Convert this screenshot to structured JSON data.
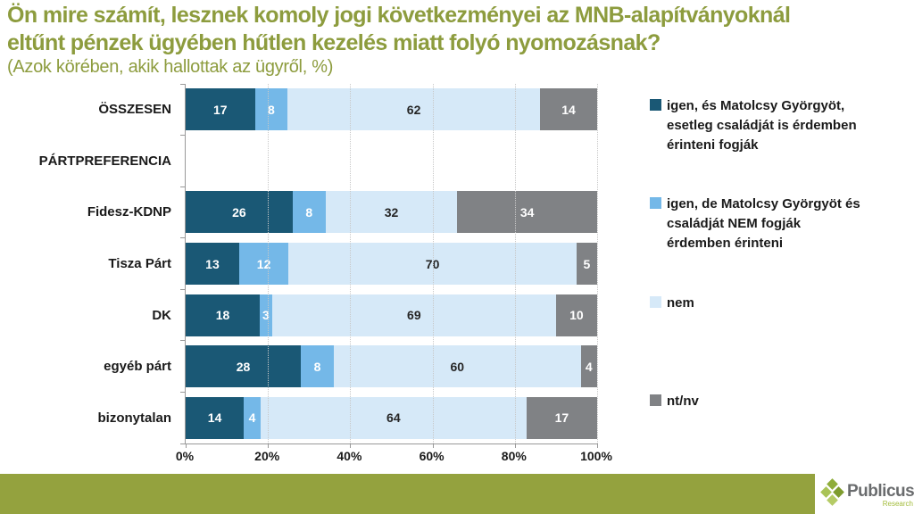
{
  "page": {
    "title_line1": "Ön mire számít, lesznek komoly jogi következményei az MNB-alapítványoknál",
    "title_line2": "eltűnt pénzek ügyében hűtlen kezelés miatt folyó nyomozásnak?",
    "subtitle": "(Azok körében, akik hallottak az ügyről, %)"
  },
  "colors": {
    "title_green": "#8d9c3e",
    "footer_green": "#94a23e",
    "axis_gray": "#999999"
  },
  "chart_data": {
    "type": "bar",
    "stacked": true,
    "orientation": "horizontal",
    "title": "Ön mire számít, lesznek komoly jogi következményei az MNB-alapítványoknál eltűnt pénzek ügyében hűtlen kezelés miatt folyó nyomozásnak?",
    "subtitle": "(Azok körében, akik hallottak az ügyről, %)",
    "categories": [
      "ÖSSZESEN",
      "PÁRTPREFERENCIA",
      "Fidesz-KDNP",
      "Tisza Párt",
      "DK",
      "egyéb párt",
      "bizonytalan"
    ],
    "series": [
      {
        "name": "igen, és Matolcsy Györgyöt, esetleg családját is érdemben érinteni fogják",
        "color": "#1a5875",
        "label_color": "#ffffff",
        "values": [
          17,
          null,
          26,
          13,
          18,
          28,
          14
        ]
      },
      {
        "name": "igen, de Matolcsy Györgyöt és családját NEM fogják érdemben érinteni",
        "color": "#74b8e8",
        "label_color": "#ffffff",
        "values": [
          8,
          null,
          8,
          12,
          3,
          8,
          4
        ]
      },
      {
        "name": "nem",
        "color": "#d6e9f8",
        "label_color": "#262626",
        "values": [
          62,
          null,
          32,
          70,
          69,
          60,
          64
        ]
      },
      {
        "name": "nt/nv",
        "color": "#808285",
        "label_color": "#ffffff",
        "values": [
          14,
          null,
          34,
          5,
          10,
          4,
          17
        ]
      }
    ],
    "x_ticks": [
      {
        "label": "0%",
        "value": 0
      },
      {
        "label": "20%",
        "value": 20
      },
      {
        "label": "40%",
        "value": 40
      },
      {
        "label": "60%",
        "value": 60
      },
      {
        "label": "80%",
        "value": 80
      },
      {
        "label": "100%",
        "value": 100
      }
    ],
    "xlim": [
      0,
      100
    ],
    "grid": "vertical-dotted",
    "legend_position": "right"
  },
  "footer": {
    "brand": "Publicus",
    "brand_sub": "Research"
  }
}
